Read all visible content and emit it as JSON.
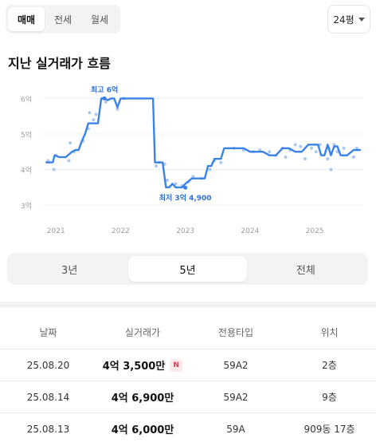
{
  "trade_tabs": [
    {
      "label": "매매",
      "active": true
    },
    {
      "label": "전세",
      "active": false
    },
    {
      "label": "월세",
      "active": false
    }
  ],
  "size_select": {
    "value": "24평"
  },
  "section_title": "지난 실거래가 흐름",
  "chart_data": {
    "type": "line",
    "title": "",
    "xlabel": "",
    "ylabel": "",
    "y_tick_labels": [
      "6억",
      "5억",
      "4억",
      "3억"
    ],
    "y_ticks": [
      6,
      5,
      4,
      3
    ],
    "ylim": [
      2.8,
      6.3
    ],
    "x_tick_labels": [
      "2021",
      "2022",
      "2023",
      "2024",
      "2025"
    ],
    "x_ticks": [
      2021,
      2022,
      2023,
      2024,
      2025
    ],
    "xlim": [
      2020.8,
      2025.75
    ],
    "grid": true,
    "line_color": "#3b82e6",
    "point_color": "#aac8f2",
    "series": [
      {
        "x": [
          2020.85,
          2020.9,
          2020.95,
          2020.98,
          2021.05,
          2021.1,
          2021.15,
          2021.25,
          2021.3,
          2021.35,
          2021.4,
          2021.45,
          2021.5,
          2021.55,
          2021.6,
          2021.65,
          2021.7,
          2021.75,
          2021.8,
          2021.85,
          2021.9,
          2021.95,
          2022.0,
          2022.1,
          2022.2,
          2022.3,
          2022.4,
          2022.5,
          2022.53,
          2022.58,
          2022.62,
          2022.65,
          2022.7,
          2022.75,
          2022.8,
          2022.85,
          2022.9,
          2022.95,
          2023.0,
          2023.1,
          2023.2,
          2023.25,
          2023.3,
          2023.35,
          2023.4,
          2023.45,
          2023.5,
          2023.55,
          2023.6,
          2023.7,
          2023.8,
          2023.9,
          2024.0,
          2024.1,
          2024.2,
          2024.3,
          2024.4,
          2024.5,
          2024.55,
          2024.6,
          2024.7,
          2024.8,
          2024.9,
          2025.0,
          2025.05,
          2025.1,
          2025.15,
          2025.2,
          2025.25,
          2025.3,
          2025.35,
          2025.4,
          2025.5,
          2025.6,
          2025.7
        ],
        "y": [
          4.2,
          4.2,
          4.2,
          4.4,
          4.35,
          4.35,
          4.35,
          4.5,
          4.55,
          4.55,
          4.8,
          5.0,
          5.3,
          5.3,
          5.3,
          5.3,
          6.0,
          6.0,
          5.95,
          6.0,
          6.0,
          5.75,
          6.0,
          6.0,
          6.0,
          6.0,
          6.0,
          6.0,
          4.2,
          4.2,
          4.2,
          4.2,
          3.5,
          3.5,
          3.6,
          3.5,
          3.5,
          3.5,
          3.6,
          3.75,
          3.75,
          3.75,
          3.75,
          4.1,
          4.1,
          4.3,
          4.3,
          4.3,
          4.6,
          4.6,
          4.6,
          4.6,
          4.5,
          4.5,
          4.5,
          4.4,
          4.4,
          4.6,
          4.6,
          4.6,
          4.5,
          4.5,
          4.7,
          4.7,
          4.7,
          4.4,
          4.4,
          4.7,
          4.4,
          4.65,
          4.65,
          4.4,
          4.4,
          4.55,
          4.55
        ]
      }
    ],
    "scatter": {
      "x": [
        2020.88,
        2020.97,
        2021.0,
        2021.2,
        2021.22,
        2021.28,
        2021.42,
        2021.5,
        2021.52,
        2021.58,
        2021.62,
        2021.72,
        2021.77,
        2021.95,
        2022.05,
        2022.55,
        2022.6,
        2022.68,
        2022.72,
        2022.85,
        2022.95,
        2023.05,
        2023.12,
        2023.25,
        2023.38,
        2023.45,
        2023.55,
        2023.75,
        2023.9,
        2024.05,
        2024.15,
        2024.3,
        2024.4,
        2024.5,
        2024.55,
        2024.62,
        2024.7,
        2024.78,
        2024.85,
        2024.95,
        2025.02,
        2025.08,
        2025.2,
        2025.22,
        2025.25,
        2025.3,
        2025.35,
        2025.45,
        2025.6,
        2025.65
      ],
      "y": [
        4.25,
        4.0,
        4.4,
        4.25,
        4.75,
        4.5,
        4.8,
        5.15,
        5.6,
        5.4,
        5.55,
        6.0,
        5.9,
        5.7,
        6.0,
        4.1,
        4.2,
        4.15,
        3.7,
        3.6,
        3.55,
        3.65,
        3.8,
        3.75,
        4.0,
        4.25,
        4.2,
        4.6,
        4.55,
        4.5,
        4.55,
        4.5,
        4.4,
        4.6,
        4.35,
        4.55,
        4.7,
        4.65,
        4.3,
        4.6,
        4.5,
        4.7,
        4.3,
        4.6,
        4.0,
        4.7,
        4.5,
        4.6,
        4.35,
        4.6
      ]
    },
    "annotations": [
      {
        "label": "최고 6억",
        "x": 2021.75,
        "y": 6.0,
        "position": "above"
      },
      {
        "label": "최저 3억 4,900",
        "x": 2023.0,
        "y": 3.49,
        "position": "below"
      }
    ]
  },
  "range_tabs": [
    {
      "label": "3년",
      "active": false
    },
    {
      "label": "5년",
      "active": true
    },
    {
      "label": "전체",
      "active": false
    }
  ],
  "table": {
    "headers": [
      "날짜",
      "실거래가",
      "전용타입",
      "위치"
    ],
    "rows": [
      {
        "date": "25.08.20",
        "price": "4억 3,500만",
        "badge": "N",
        "type": "59A2",
        "location": "2층"
      },
      {
        "date": "25.08.14",
        "price": "4억 6,900만",
        "badge": "",
        "type": "59A2",
        "location": "9층"
      },
      {
        "date": "25.08.13",
        "price": "4억 6,000만",
        "badge": "",
        "type": "59A",
        "location": "909동 17층"
      }
    ]
  }
}
